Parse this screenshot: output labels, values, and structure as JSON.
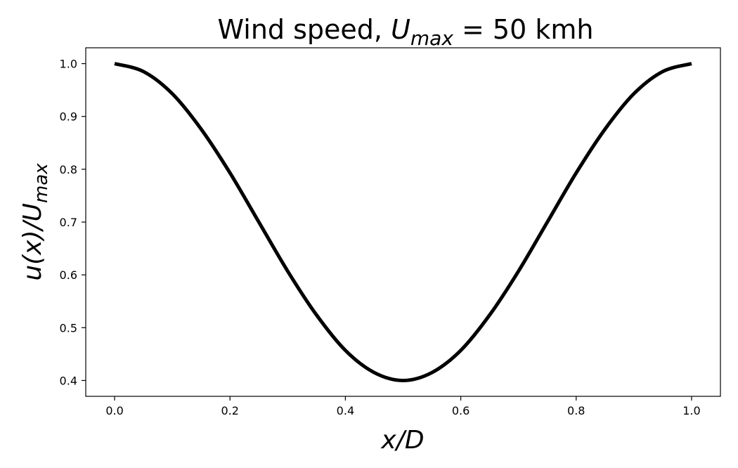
{
  "chart_data": {
    "type": "line",
    "title": {
      "prefix": "Wind speed, ",
      "var": "U",
      "sub": "max",
      "rest": " = 50 kmh"
    },
    "xlabel": {
      "main": "x/D"
    },
    "ylabel": {
      "prefix": "u(x)/",
      "var": "U",
      "sub": "max"
    },
    "xlim": [
      -0.05,
      1.05
    ],
    "ylim": [
      0.37,
      1.03
    ],
    "xticks": [
      0.0,
      0.2,
      0.4,
      0.6,
      0.8,
      1.0
    ],
    "xtick_labels": [
      "0.0",
      "0.2",
      "0.4",
      "0.6",
      "0.8",
      "1.0"
    ],
    "yticks": [
      0.4,
      0.5,
      0.6,
      0.7,
      0.8,
      0.9,
      1.0
    ],
    "ytick_labels": [
      "0.4",
      "0.5",
      "0.6",
      "0.7",
      "0.8",
      "0.9",
      "1.0"
    ],
    "grid": false,
    "series": [
      {
        "color": "#000000",
        "x": [
          0.0,
          0.05,
          0.1,
          0.15,
          0.2,
          0.25,
          0.3,
          0.35,
          0.4,
          0.45,
          0.5,
          0.55,
          0.6,
          0.65,
          0.7,
          0.75,
          0.8,
          0.85,
          0.9,
          0.95,
          1.0
        ],
        "y": [
          1.0,
          0.985,
          0.943,
          0.876,
          0.793,
          0.7,
          0.607,
          0.524,
          0.457,
          0.415,
          0.4,
          0.415,
          0.457,
          0.524,
          0.607,
          0.7,
          0.793,
          0.876,
          0.943,
          0.985,
          1.0
        ]
      }
    ]
  }
}
